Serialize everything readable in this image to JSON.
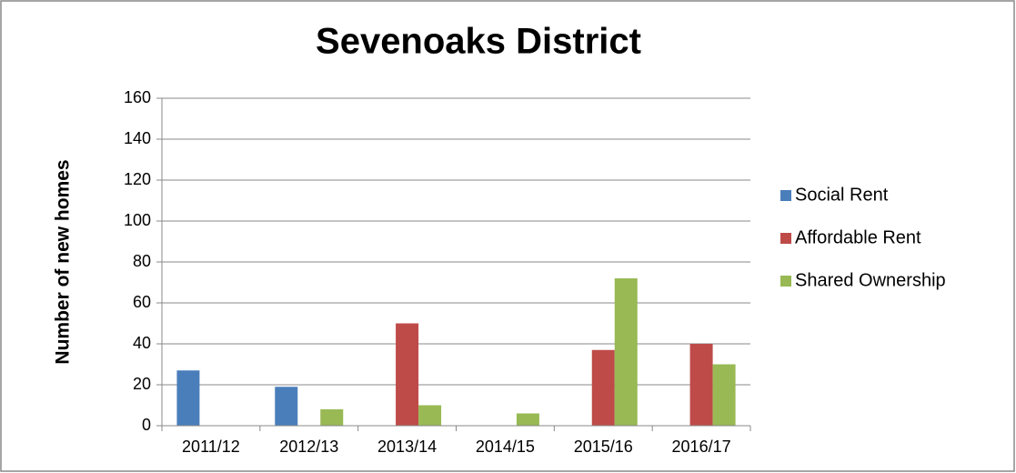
{
  "chart_data": {
    "type": "bar",
    "title": "Sevenoaks District",
    "y_label": "Number of new homes",
    "categories": [
      "2011/12",
      "2012/13",
      "2013/14",
      "2014/15",
      "2015/16",
      "2016/17"
    ],
    "series": [
      {
        "name": "Social Rent",
        "color": "#4a7ebb",
        "values": [
          27,
          19,
          0,
          0,
          0,
          0
        ]
      },
      {
        "name": "Affordable Rent",
        "color": "#be4b48",
        "values": [
          0,
          0,
          50,
          0,
          37,
          40
        ]
      },
      {
        "name": "Shared Ownership",
        "color": "#98b954",
        "values": [
          0,
          8,
          10,
          6,
          72,
          30
        ]
      }
    ],
    "ylim": [
      0,
      160
    ],
    "yticks": [
      0,
      20,
      40,
      60,
      80,
      100,
      120,
      140,
      160
    ],
    "grid": true,
    "legend": "right"
  }
}
